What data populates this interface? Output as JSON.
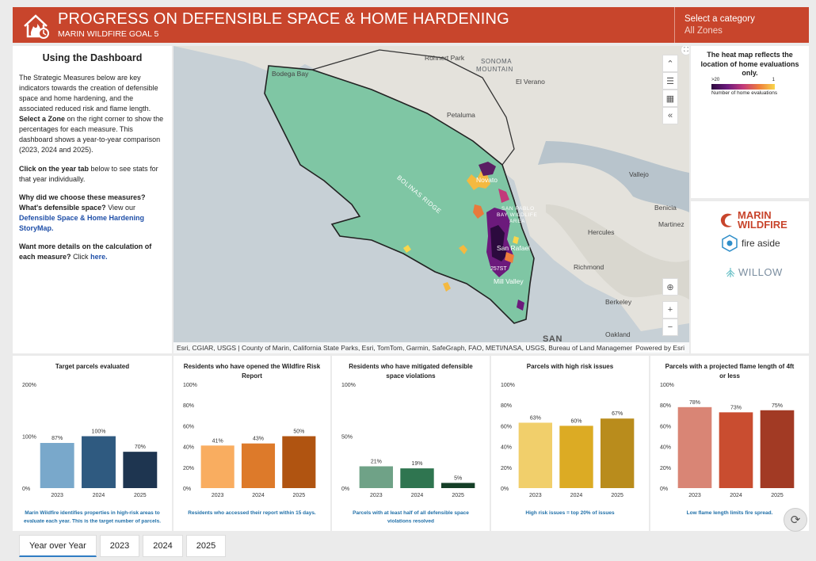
{
  "header": {
    "title": "PROGRESS ON DEFENSIBLE SPACE & HOME HARDENING",
    "subtitle": "MARIN WILDFIRE GOAL 5",
    "category_label": "Select a category",
    "category_value": "All Zones",
    "icon": "house-fire-icon"
  },
  "intro": {
    "heading": "Using the Dashboard",
    "p1_text": "The Strategic Measures below are key indicators towards the creation of defensible space and home hardening, and the associated reduced risk and flame length.",
    "p1_bold": "Select a Zone",
    "p1_rest": "on the right corner to show the percentages for each measure. This dashboard shows a year-to-year comparison (2023, 2024 and 2025).",
    "p2_bold": "Click on the year tab",
    "p2_rest": "below to see stats for that year individually.",
    "p3_bold": "Why did we choose these measures? What's defensible space?",
    "p3_text": "View our",
    "p3_link": "Defensible Space & Home Hardening StoryMap.",
    "p4_bold": "Want more details on the calculation of each measure?",
    "p4_text": "Click",
    "p4_link": "here."
  },
  "map": {
    "labels": {
      "rohnert": "Rohnert Park",
      "sonoma": "SONOMA",
      "mountain": "MOUNTAIN",
      "bodega": "Bodega Bay",
      "verano": "El Verano",
      "petaluma": "Petaluma",
      "vallejo": "Vallejo",
      "novato": "Novato",
      "bolinas": "BOLINAS RIDGE",
      "sanpablo": "SAN PABLO",
      "sanpablo2": "BAY WILDLIFE",
      "sanpablo3": "AREA",
      "benicia": "Benicia",
      "martinez": "Martinez",
      "hercules": "Hercules",
      "sanrafael": "San Rafael",
      "road": "257ST",
      "millvalley": "Mill Valley",
      "richmond": "Richmond",
      "berkeley": "Berkeley",
      "oakland": "Oakland",
      "san": "SAN"
    },
    "attribution": "Esri, CGIAR, USGS | County of Marin, California State Parks, Esri, TomTom, Garmin, SafeGraph, FAO, METI/NASA, USGS, Bureau of Land Management, ...",
    "powered": "Powered by Esri",
    "zoom_in": "+",
    "zoom_out": "−"
  },
  "legend": {
    "title": "The heat map reflects the location of home evaluations only.",
    "tick_high": ">20",
    "tick_low": "1",
    "caption": "Number of home evaluations"
  },
  "logos": {
    "marin_wildfire_1": "MARIN",
    "marin_wildfire_2": "WILDFIRE",
    "fire_aside": "fire aside",
    "willow": "WILLOW"
  },
  "chart_data": [
    {
      "type": "bar",
      "title": "Target parcels evaluated",
      "categories": [
        "2023",
        "2024",
        "2025"
      ],
      "values": [
        87,
        100,
        70
      ],
      "data_labels": [
        "87%",
        "100%",
        "70%"
      ],
      "yticks": [
        "200%",
        "100%",
        "0%"
      ],
      "ylim": [
        0,
        200
      ],
      "colors": [
        "#79a8cb",
        "#2f5a80",
        "#1e3550"
      ],
      "footnote": "Marin Wildfire identifies properties in high-risk areas to evaluate each year. This is the target number of parcels."
    },
    {
      "type": "bar",
      "title": "Residents who have opened the Wildfire Risk Report",
      "categories": [
        "2023",
        "2024",
        "2025"
      ],
      "values": [
        41,
        43,
        50
      ],
      "data_labels": [
        "41%",
        "43%",
        "50%"
      ],
      "yticks": [
        "100%",
        "80%",
        "60%",
        "40%",
        "20%",
        "0%"
      ],
      "ylim": [
        0,
        100
      ],
      "colors": [
        "#f9ad60",
        "#dd7a2a",
        "#b05411"
      ],
      "footnote": "Residents who accessed their report within 15 days."
    },
    {
      "type": "bar",
      "title": "Residents who have mitigated defensible space violations",
      "categories": [
        "2023",
        "2024",
        "2025"
      ],
      "values": [
        21,
        19,
        5
      ],
      "data_labels": [
        "21%",
        "19%",
        "5%"
      ],
      "yticks": [
        "100%",
        "50%",
        "0%"
      ],
      "ylim": [
        0,
        100
      ],
      "colors": [
        "#6fa287",
        "#2f7550",
        "#153f27"
      ],
      "footnote": "Parcels with at least half of all defensible space violations resolved"
    },
    {
      "type": "bar",
      "title": "Parcels with high risk issues",
      "categories": [
        "2023",
        "2024",
        "2025"
      ],
      "values": [
        63,
        60,
        67
      ],
      "data_labels": [
        "63%",
        "60%",
        "67%"
      ],
      "yticks": [
        "100%",
        "80%",
        "60%",
        "40%",
        "20%",
        "0%"
      ],
      "ylim": [
        0,
        100
      ],
      "colors": [
        "#f1cf6b",
        "#dcab24",
        "#b98c1c"
      ],
      "footnote": "High risk issues = top 20% of issues"
    },
    {
      "type": "bar",
      "title": "Parcels with a projected flame length of 4ft or less",
      "categories": [
        "2023",
        "2024",
        "2025"
      ],
      "values": [
        78,
        73,
        75
      ],
      "data_labels": [
        "78%",
        "73%",
        "75%"
      ],
      "yticks": [
        "100%",
        "80%",
        "60%",
        "40%",
        "20%",
        "0%"
      ],
      "ylim": [
        0,
        100
      ],
      "colors": [
        "#d98575",
        "#c94d30",
        "#a23a24"
      ],
      "footnote": "Low flame length limits fire spread."
    }
  ],
  "tabs": [
    "Year over Year",
    "2023",
    "2024",
    "2025"
  ],
  "refresh_icon": "refresh-icon"
}
